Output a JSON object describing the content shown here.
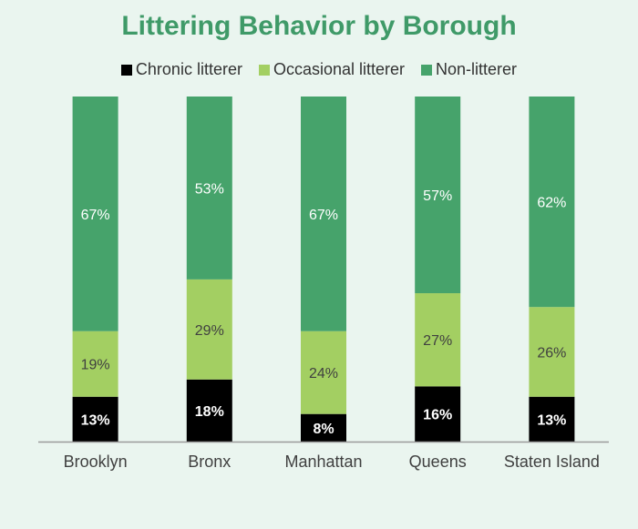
{
  "colors": {
    "background": "#eaf5ef",
    "title": "#3f9a68",
    "chronic": "#000000",
    "occasional": "#a3cf62",
    "non": "#46a36b",
    "axis": "#9a9a9a",
    "tick_text": "#404040"
  },
  "chart_data": {
    "type": "bar",
    "stacked": true,
    "percent_stacked": true,
    "title": "Littering Behavior by Borough",
    "xlabel": "",
    "ylabel": "",
    "ylim": [
      0,
      100
    ],
    "grid": false,
    "legend_position": "top",
    "categories": [
      "Brooklyn",
      "Bronx",
      "Manhattan",
      "Queens",
      "Staten Island"
    ],
    "series": [
      {
        "name": "Chronic litterer",
        "values": [
          13,
          18,
          8,
          16,
          13
        ],
        "labels": [
          "13%",
          "18%",
          "8%",
          "16%",
          "13%"
        ],
        "color": "#000000",
        "label_color": "#ffffff"
      },
      {
        "name": "Occasional litterer",
        "values": [
          19,
          29,
          24,
          27,
          26
        ],
        "labels": [
          "19%",
          "29%",
          "24%",
          "27%",
          "26%"
        ],
        "color": "#a3cf62",
        "label_color": "#404040"
      },
      {
        "name": "Non-litterer",
        "values": [
          67,
          53,
          67,
          57,
          62
        ],
        "labels": [
          "67%",
          "53%",
          "67%",
          "57%",
          "62%"
        ],
        "color": "#46a36b",
        "label_color": "#ffffff"
      }
    ]
  }
}
